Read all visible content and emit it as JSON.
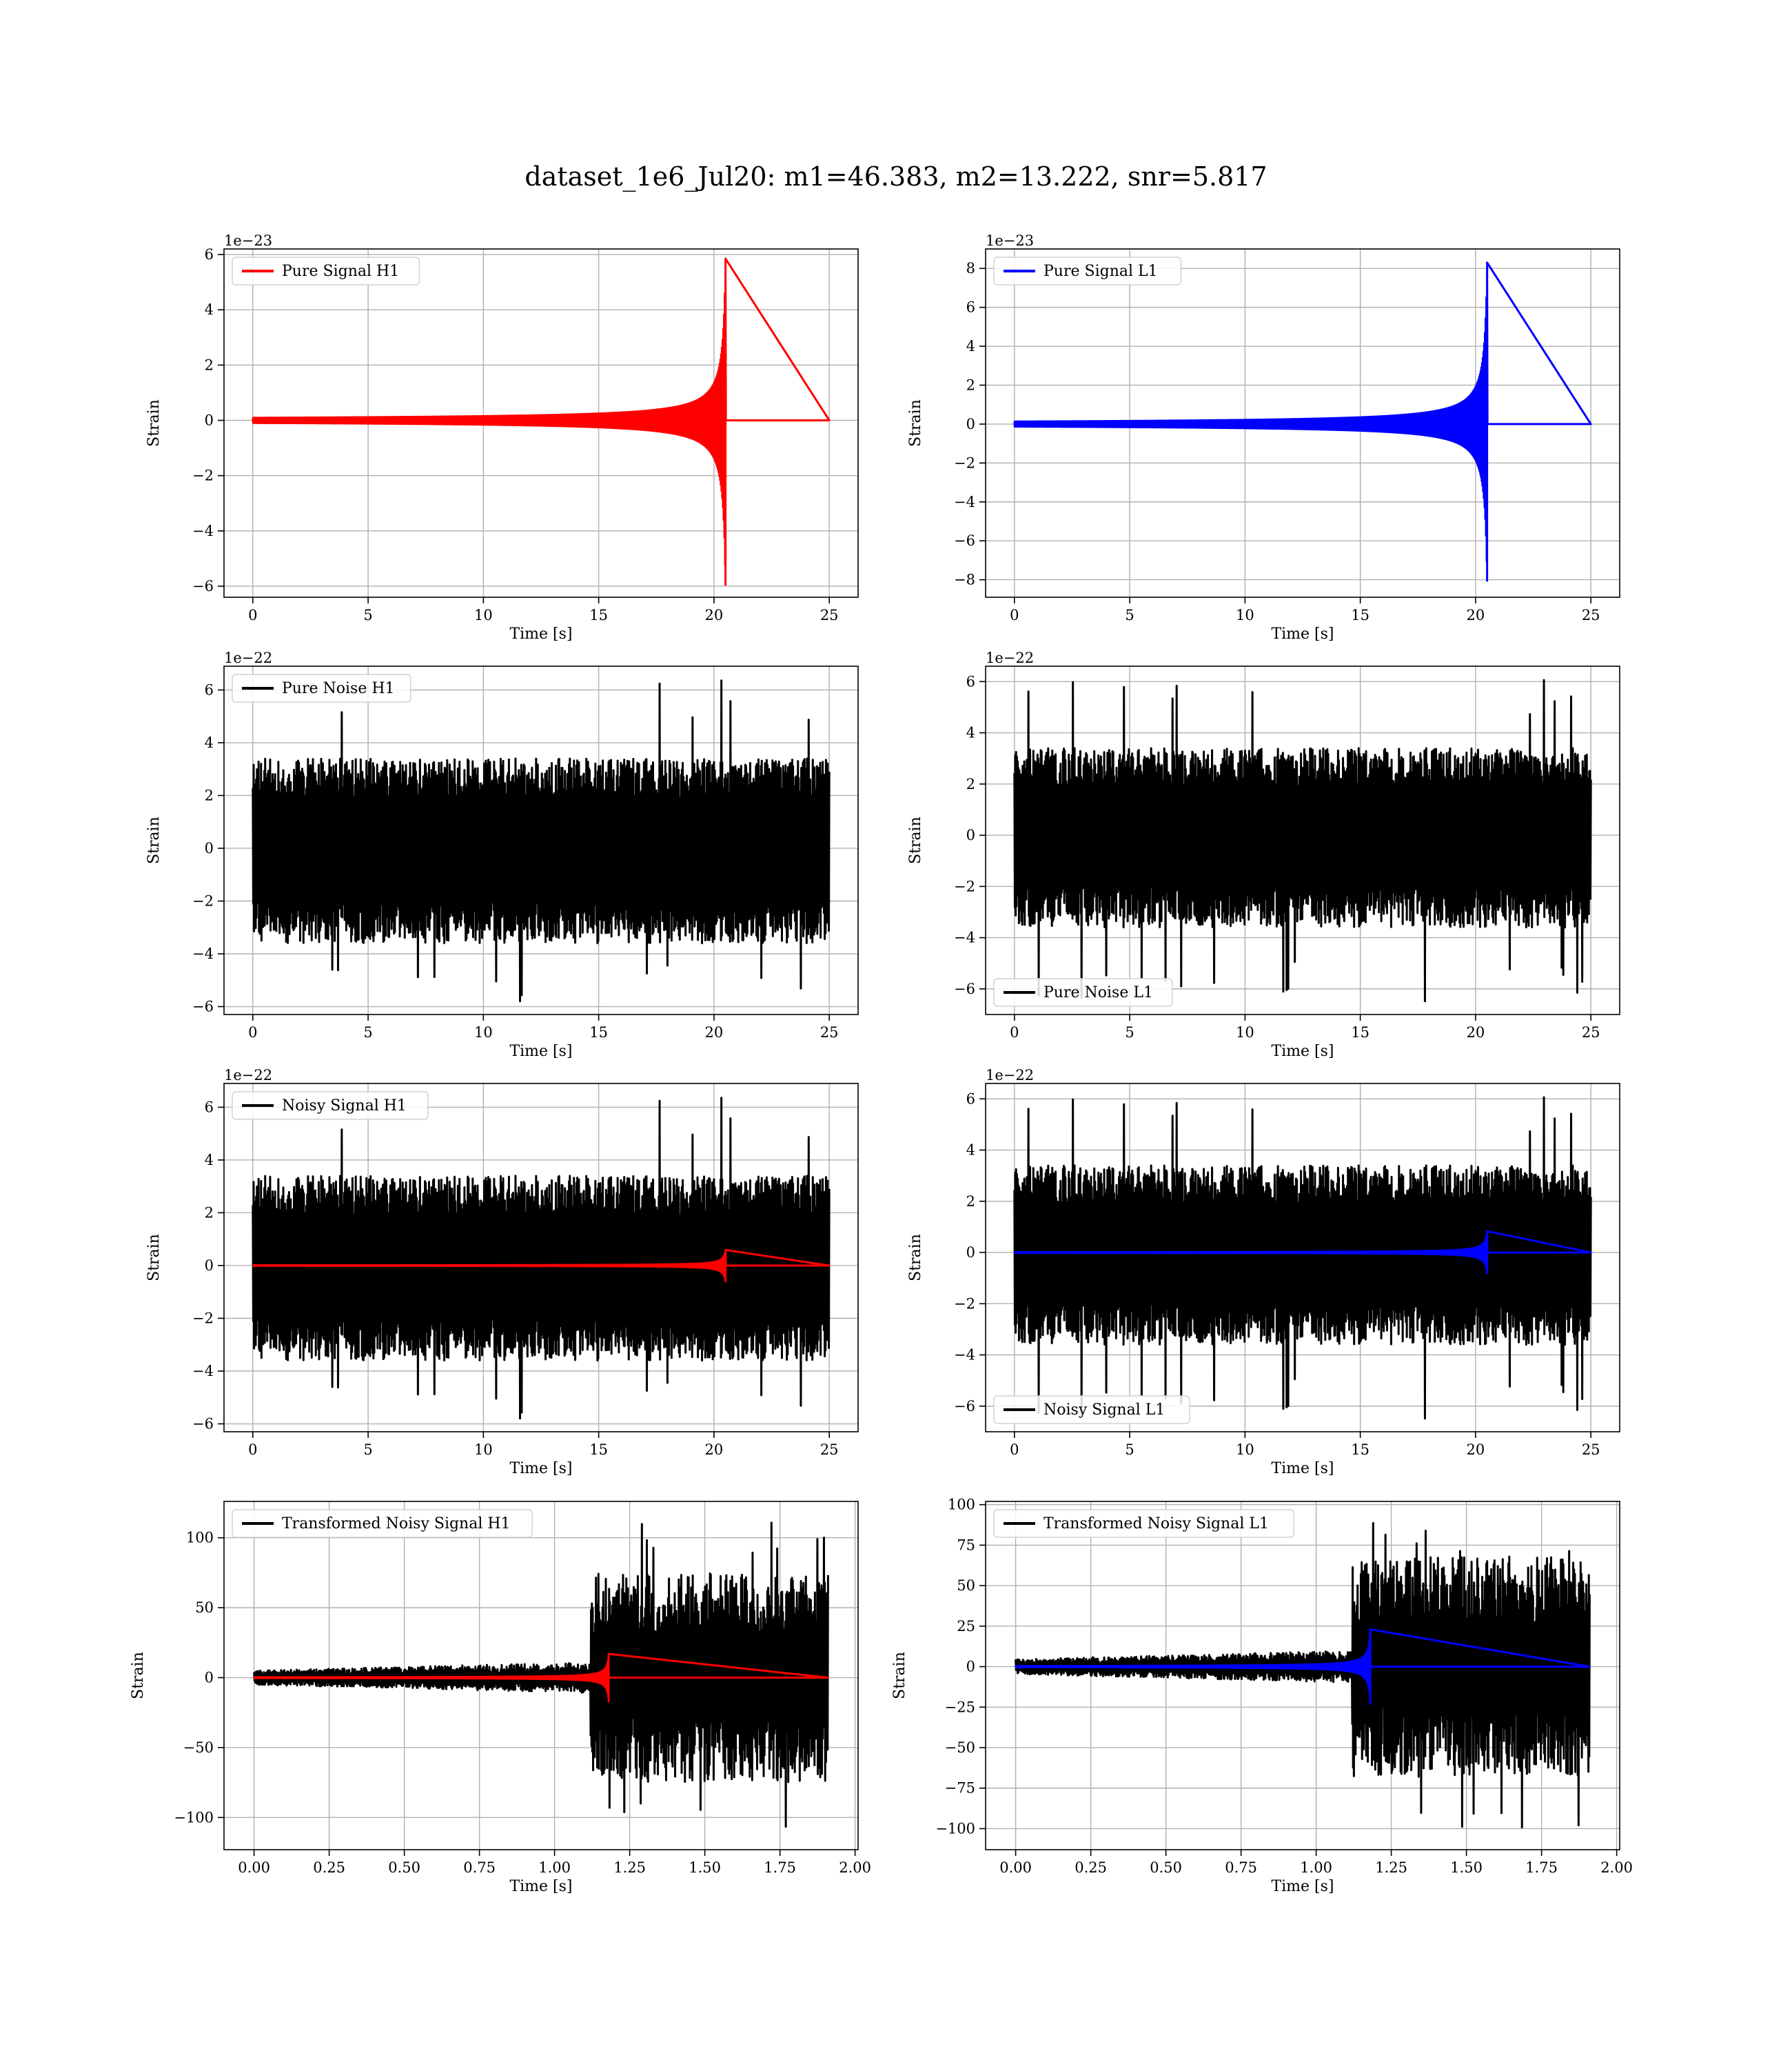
{
  "figure": {
    "title": "dataset_1e6_Jul20: m1=46.383, m2=13.222, snr=5.817"
  },
  "colors": {
    "signal_h1": "#ff0000",
    "signal_l1": "#0000ff",
    "noise": "#000000",
    "grid": "#b0b0b0"
  },
  "chart_data": [
    {
      "id": "pure-signal-h1",
      "type": "line",
      "xlabel": "Time [s]",
      "ylabel": "Strain",
      "offset_text": "1e−23",
      "xlim": [
        -1.25,
        26.25
      ],
      "ylim": [
        -6.4,
        6.2
      ],
      "xticks": [
        0,
        5,
        10,
        15,
        20,
        25
      ],
      "xtick_labels": [
        "0",
        "5",
        "10",
        "15",
        "20",
        "25"
      ],
      "yticks": [
        -6,
        -4,
        -2,
        0,
        2,
        4,
        6
      ],
      "ytick_labels": [
        "−6",
        "−4",
        "−2",
        "0",
        "2",
        "4",
        "6"
      ],
      "legend_position": "top-left",
      "grid": true,
      "series": [
        {
          "name": "Pure Signal H1",
          "color": "#ff0000",
          "kind": "chirp",
          "x_range": [
            0,
            25
          ],
          "merger_time": 20.5,
          "peak_high": 5.85,
          "peak_low": -5.95,
          "baseline": 0
        }
      ]
    },
    {
      "id": "pure-signal-l1",
      "type": "line",
      "xlabel": "Time [s]",
      "ylabel": "Strain",
      "offset_text": "1e−23",
      "xlim": [
        -1.25,
        26.25
      ],
      "ylim": [
        -8.9,
        9.0
      ],
      "xticks": [
        0,
        5,
        10,
        15,
        20,
        25
      ],
      "xtick_labels": [
        "0",
        "5",
        "10",
        "15",
        "20",
        "25"
      ],
      "yticks": [
        -8,
        -6,
        -4,
        -2,
        0,
        2,
        4,
        6,
        8
      ],
      "ytick_labels": [
        "−8",
        "−6",
        "−4",
        "−2",
        "0",
        "2",
        "4",
        "6",
        "8"
      ],
      "legend_position": "top-left",
      "grid": true,
      "series": [
        {
          "name": "Pure Signal L1",
          "color": "#0000ff",
          "kind": "chirp",
          "x_range": [
            0,
            25
          ],
          "merger_time": 20.5,
          "peak_high": 8.3,
          "peak_low": -8.05,
          "baseline": 0
        }
      ]
    },
    {
      "id": "pure-noise-h1",
      "type": "line",
      "xlabel": "Time [s]",
      "ylabel": "Strain",
      "offset_text": "1e−22",
      "xlim": [
        -1.25,
        26.25
      ],
      "ylim": [
        -6.3,
        6.9
      ],
      "xticks": [
        0,
        5,
        10,
        15,
        20,
        25
      ],
      "xtick_labels": [
        "0",
        "5",
        "10",
        "15",
        "20",
        "25"
      ],
      "yticks": [
        -6,
        -4,
        -2,
        0,
        2,
        4,
        6
      ],
      "ytick_labels": [
        "−6",
        "−4",
        "−2",
        "0",
        "2",
        "4",
        "6"
      ],
      "legend_position": "top-left",
      "grid": true,
      "series": [
        {
          "name": "Pure Noise H1",
          "color": "#000000",
          "kind": "noise",
          "x_range": [
            0,
            25
          ],
          "band_high": 3.4,
          "band_low": -3.6,
          "spike_high": 6.4,
          "spike_low": -5.8,
          "seed": 11
        }
      ]
    },
    {
      "id": "pure-noise-l1",
      "type": "line",
      "xlabel": "Time [s]",
      "ylabel": "Strain",
      "offset_text": "1e−22",
      "xlim": [
        -1.25,
        26.25
      ],
      "ylim": [
        -7.0,
        6.6
      ],
      "xticks": [
        0,
        5,
        10,
        15,
        20,
        25
      ],
      "xtick_labels": [
        "0",
        "5",
        "10",
        "15",
        "20",
        "25"
      ],
      "yticks": [
        -6,
        -4,
        -2,
        0,
        2,
        4,
        6
      ],
      "ytick_labels": [
        "−6",
        "−4",
        "−2",
        "0",
        "2",
        "4",
        "6"
      ],
      "legend_position": "bottom-left",
      "grid": true,
      "series": [
        {
          "name": "Pure Noise L1",
          "color": "#000000",
          "kind": "noise",
          "x_range": [
            0,
            25
          ],
          "band_high": 3.4,
          "band_low": -3.6,
          "spike_high": 6.3,
          "spike_low": -6.5,
          "seed": 23
        }
      ]
    },
    {
      "id": "noisy-signal-h1",
      "type": "line",
      "xlabel": "Time [s]",
      "ylabel": "Strain",
      "offset_text": "1e−22",
      "xlim": [
        -1.25,
        26.25
      ],
      "ylim": [
        -6.3,
        6.9
      ],
      "xticks": [
        0,
        5,
        10,
        15,
        20,
        25
      ],
      "xtick_labels": [
        "0",
        "5",
        "10",
        "15",
        "20",
        "25"
      ],
      "yticks": [
        -6,
        -4,
        -2,
        0,
        2,
        4,
        6
      ],
      "ytick_labels": [
        "−6",
        "−4",
        "−2",
        "0",
        "2",
        "4",
        "6"
      ],
      "legend_position": "top-left",
      "grid": true,
      "series": [
        {
          "name": "Noisy Signal H1",
          "color": "#000000",
          "kind": "noise",
          "x_range": [
            0,
            25
          ],
          "band_high": 3.4,
          "band_low": -3.6,
          "spike_high": 6.4,
          "spike_low": -5.8,
          "seed": 11
        },
        {
          "color": "#ff0000",
          "kind": "chirp",
          "x_range": [
            0,
            25
          ],
          "merger_time": 20.5,
          "peak_high": 0.59,
          "peak_low": -0.6,
          "baseline": 0
        }
      ]
    },
    {
      "id": "noisy-signal-l1",
      "type": "line",
      "xlabel": "Time [s]",
      "ylabel": "Strain",
      "offset_text": "1e−22",
      "xlim": [
        -1.25,
        26.25
      ],
      "ylim": [
        -7.0,
        6.6
      ],
      "xticks": [
        0,
        5,
        10,
        15,
        20,
        25
      ],
      "xtick_labels": [
        "0",
        "5",
        "10",
        "15",
        "20",
        "25"
      ],
      "yticks": [
        -6,
        -4,
        -2,
        0,
        2,
        4,
        6
      ],
      "ytick_labels": [
        "−6",
        "−4",
        "−2",
        "0",
        "2",
        "4",
        "6"
      ],
      "legend_position": "bottom-left",
      "grid": true,
      "series": [
        {
          "name": "Noisy Signal L1",
          "color": "#000000",
          "kind": "noise",
          "x_range": [
            0,
            25
          ],
          "band_high": 3.4,
          "band_low": -3.6,
          "spike_high": 6.3,
          "spike_low": -6.5,
          "seed": 23
        },
        {
          "color": "#0000ff",
          "kind": "chirp",
          "x_range": [
            0,
            25
          ],
          "merger_time": 20.5,
          "peak_high": 0.83,
          "peak_low": -0.81,
          "baseline": 0
        }
      ]
    },
    {
      "id": "transformed-noisy-signal-h1",
      "type": "line",
      "xlabel": "Time [s]",
      "ylabel": "Strain",
      "offset_text": "",
      "xlim": [
        -0.1,
        2.01
      ],
      "ylim": [
        -123,
        126
      ],
      "xticks": [
        0.0,
        0.25,
        0.5,
        0.75,
        1.0,
        1.25,
        1.5,
        1.75,
        2.0
      ],
      "xtick_labels": [
        "0.00",
        "0.25",
        "0.50",
        "0.75",
        "1.00",
        "1.25",
        "1.50",
        "1.75",
        "2.00"
      ],
      "yticks": [
        -100,
        -50,
        0,
        50,
        100
      ],
      "ytick_labels": [
        "−100",
        "−50",
        "0",
        "50",
        "100"
      ],
      "legend_position": "top-left",
      "grid": true,
      "series": [
        {
          "name": "Transformed Noisy Signal H1",
          "color": "#000000",
          "kind": "transformed",
          "x_range": [
            0,
            1.91
          ],
          "rise_time": 1.12,
          "early_high": 10,
          "early_low": -10,
          "late_high": 75,
          "late_low": -75,
          "spike_high": 115,
          "spike_low": -110,
          "seed": 37
        },
        {
          "color": "#ff0000",
          "kind": "chirp",
          "x_range": [
            0,
            1.91
          ],
          "merger_time": 1.18,
          "peak_high": 17,
          "peak_low": -17,
          "baseline": 0
        }
      ]
    },
    {
      "id": "transformed-noisy-signal-l1",
      "type": "line",
      "xlabel": "Time [s]",
      "ylabel": "Strain",
      "offset_text": "",
      "xlim": [
        -0.1,
        2.01
      ],
      "ylim": [
        -113,
        102
      ],
      "xticks": [
        0.0,
        0.25,
        0.5,
        0.75,
        1.0,
        1.25,
        1.5,
        1.75,
        2.0
      ],
      "xtick_labels": [
        "0.00",
        "0.25",
        "0.50",
        "0.75",
        "1.00",
        "1.25",
        "1.50",
        "1.75",
        "2.00"
      ],
      "yticks": [
        -100,
        -75,
        -50,
        -25,
        0,
        25,
        50,
        75,
        100
      ],
      "ytick_labels": [
        "−100",
        "−75",
        "−50",
        "−25",
        "0",
        "25",
        "50",
        "75",
        "100"
      ],
      "legend_position": "top-left",
      "grid": true,
      "series": [
        {
          "name": "Transformed Noisy Signal L1",
          "color": "#000000",
          "kind": "transformed",
          "x_range": [
            0,
            1.91
          ],
          "rise_time": 1.12,
          "early_high": 9,
          "early_low": -9,
          "late_high": 68,
          "late_low": -68,
          "spike_high": 92,
          "spike_low": -110,
          "seed": 41
        },
        {
          "color": "#0000ff",
          "kind": "chirp",
          "x_range": [
            0,
            1.91
          ],
          "merger_time": 1.18,
          "peak_high": 23,
          "peak_low": -23,
          "baseline": 0
        }
      ]
    }
  ]
}
